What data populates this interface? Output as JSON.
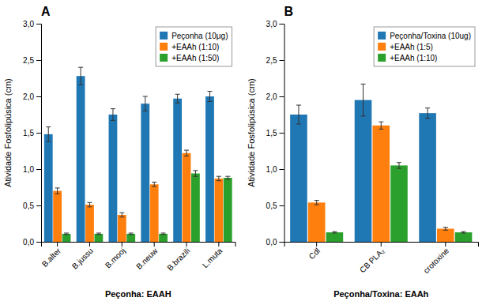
{
  "chart_data": [
    {
      "type": "bar",
      "title": "A",
      "categories": [
        "B.alter",
        "B.jussu",
        "B.mooj",
        "B.neuw",
        "B.brazili",
        "L.muta"
      ],
      "series": [
        {
          "name": "Peçonha (10μg)",
          "values": [
            1.48,
            2.28,
            1.75,
            1.9,
            1.97,
            2.0
          ],
          "errors": [
            0.1,
            0.12,
            0.08,
            0.1,
            0.06,
            0.07
          ]
        },
        {
          "name": "+EAAh (1:10)",
          "values": [
            0.7,
            0.51,
            0.37,
            0.79,
            1.22,
            0.87
          ],
          "errors": [
            0.04,
            0.03,
            0.03,
            0.03,
            0.04,
            0.03
          ]
        },
        {
          "name": "+EAAh (1:50)",
          "values": [
            0.11,
            0.11,
            0.11,
            0.11,
            0.94,
            0.88
          ],
          "errors": [
            0.01,
            0.01,
            0.01,
            0.01,
            0.04,
            0.02
          ]
        }
      ],
      "x_label": "Peçonha: EAAH",
      "y_label": "Atividade Fosfolipúsica (cm)",
      "ylim": [
        0,
        3.0
      ],
      "yticks": [
        {
          "value": 0.0,
          "label": "0,0"
        },
        {
          "value": 0.5,
          "label": "0,5"
        },
        {
          "value": 1.0,
          "label": "1,0"
        },
        {
          "value": 1.5,
          "label": "1,5"
        },
        {
          "value": 2.0,
          "label": "2,0"
        },
        {
          "value": 2.5,
          "label": "2,5"
        },
        {
          "value": 3.0,
          "label": "3,0"
        }
      ],
      "legend": "upper right",
      "grid": false
    },
    {
      "type": "bar",
      "title": "B",
      "categories": [
        "Cdl",
        "CB PLA₂",
        "crotoxine"
      ],
      "series": [
        {
          "name": "Peçonha/Toxina (10ug)",
          "values": [
            1.75,
            1.95,
            1.77
          ],
          "errors": [
            0.13,
            0.22,
            0.07
          ]
        },
        {
          "name": "+EAAh (1:5)",
          "values": [
            0.54,
            1.6,
            0.18
          ],
          "errors": [
            0.03,
            0.05,
            0.02
          ]
        },
        {
          "name": "+EAAh (1:10)",
          "values": [
            0.13,
            1.05,
            0.13
          ],
          "errors": [
            0.01,
            0.04,
            0.01
          ]
        }
      ],
      "x_label": "Peçonha/Toxina: EAAh",
      "y_label": "Atividade Fosfolipúsica (cm)",
      "ylim": [
        0,
        3.0
      ],
      "yticks": [
        {
          "value": 0.0,
          "label": "0,0"
        },
        {
          "value": 0.5,
          "label": "0,5"
        },
        {
          "value": 1.0,
          "label": "1,0"
        },
        {
          "value": 1.5,
          "label": "1,5"
        },
        {
          "value": 2.0,
          "label": "2,0"
        },
        {
          "value": 2.5,
          "label": "2,5"
        },
        {
          "value": 3.0,
          "label": "3,0"
        }
      ],
      "legend": "upper right",
      "grid": false
    }
  ]
}
